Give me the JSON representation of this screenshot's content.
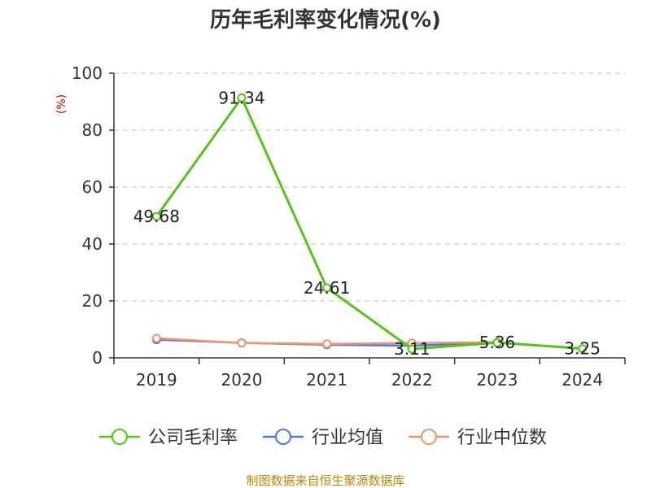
{
  "chart_data": {
    "type": "line",
    "title": "历年毛利率变化情况(%)",
    "ylabel": "(%)",
    "xlabel": "",
    "categories": [
      "2019",
      "2020",
      "2021",
      "2022",
      "2023",
      "2024"
    ],
    "ylim": [
      0,
      100
    ],
    "yticks": [
      0,
      20,
      40,
      60,
      80,
      100
    ],
    "grid": true,
    "legend_position": "bottom",
    "series": [
      {
        "name": "公司毛利率",
        "color": "#52c41a",
        "values": [
          49.68,
          91.34,
          24.61,
          3.11,
          5.36,
          3.25
        ],
        "data_labels": [
          "49.68",
          "91.34",
          "24.61",
          "3.11",
          "5.36",
          "3.25"
        ]
      },
      {
        "name": "行业均值",
        "color": "#4a7bdc",
        "values": [
          6.4,
          5.3,
          4.6,
          4.3,
          5.3,
          null
        ]
      },
      {
        "name": "行业中位数",
        "color": "#f0956a",
        "values": [
          6.9,
          5.2,
          4.9,
          5.2,
          5.5,
          null
        ]
      }
    ]
  },
  "footer": {
    "source": "制图数据来自恒生聚源数据库"
  }
}
